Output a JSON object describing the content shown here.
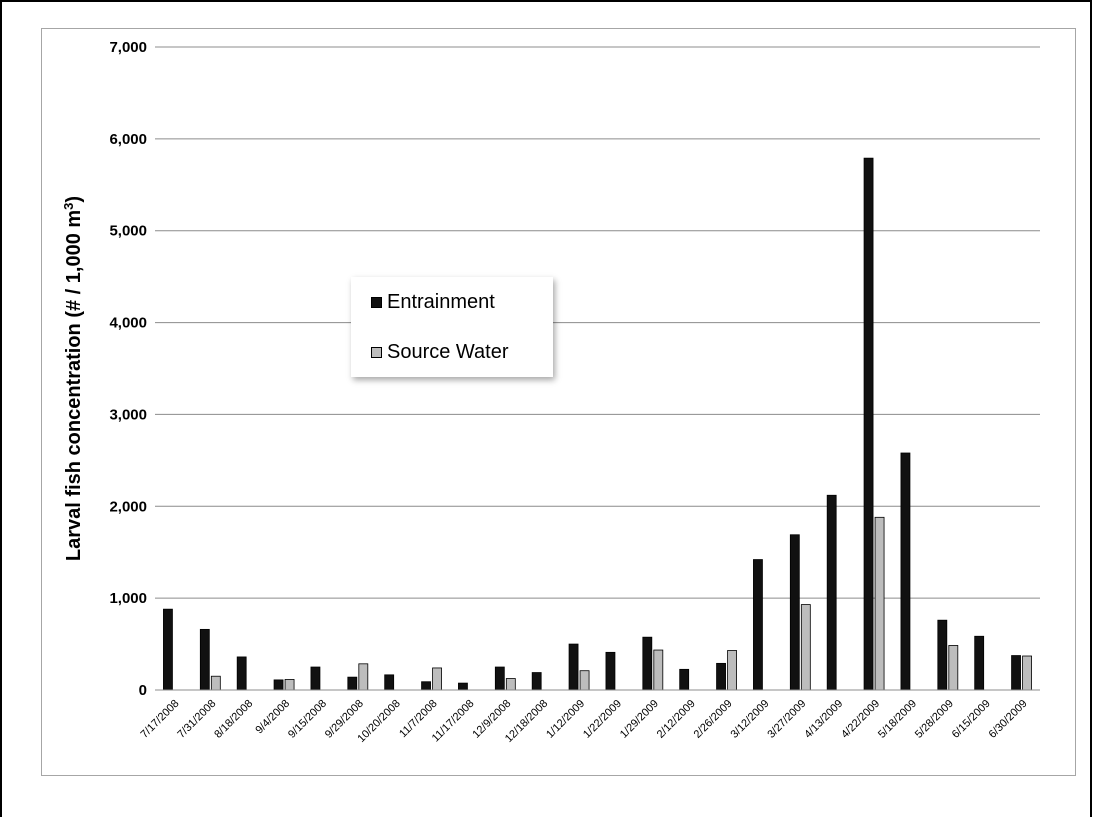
{
  "chart_data": {
    "type": "bar",
    "title": "",
    "xlabel": "",
    "ylabel": "Larval fish concentration (# / 1,000 m",
    "ylabel_superscript": "3",
    "ylabel_close": ")",
    "ylim": [
      0,
      7000
    ],
    "yticks": [
      "0",
      "1,000",
      "2,000",
      "3,000",
      "4,000",
      "5,000",
      "6,000",
      "7,000"
    ],
    "grid": true,
    "legend_position": "center-left",
    "categories": [
      "7/17/2008",
      "7/31/2008",
      "8/18/2008",
      "9/4/2008",
      "9/15/2008",
      "9/29/2008",
      "10/20/2008",
      "11/7/2008",
      "11/17/2008",
      "12/9/2008",
      "12/18/2008",
      "1/12/2009",
      "1/22/2009",
      "1/29/2009",
      "2/12/2009",
      "2/26/2009",
      "3/12/2009",
      "3/27/2009",
      "4/13/2009",
      "4/22/2009",
      "5/18/2009",
      "5/28/2009",
      "6/15/2009",
      "6/30/2009"
    ],
    "series": [
      {
        "name": "Entrainment",
        "color": "#111111",
        "values": [
          880,
          660,
          360,
          110,
          250,
          140,
          165,
          90,
          75,
          250,
          190,
          500,
          410,
          575,
          225,
          290,
          1420,
          1690,
          2120,
          5790,
          2580,
          760,
          585,
          375
        ]
      },
      {
        "name": "Source Water",
        "color": "#bdbdbd",
        "values": [
          0,
          150,
          0,
          115,
          0,
          285,
          0,
          240,
          0,
          125,
          0,
          210,
          0,
          435,
          0,
          430,
          0,
          930,
          0,
          1880,
          0,
          485,
          0,
          370
        ]
      }
    ]
  }
}
